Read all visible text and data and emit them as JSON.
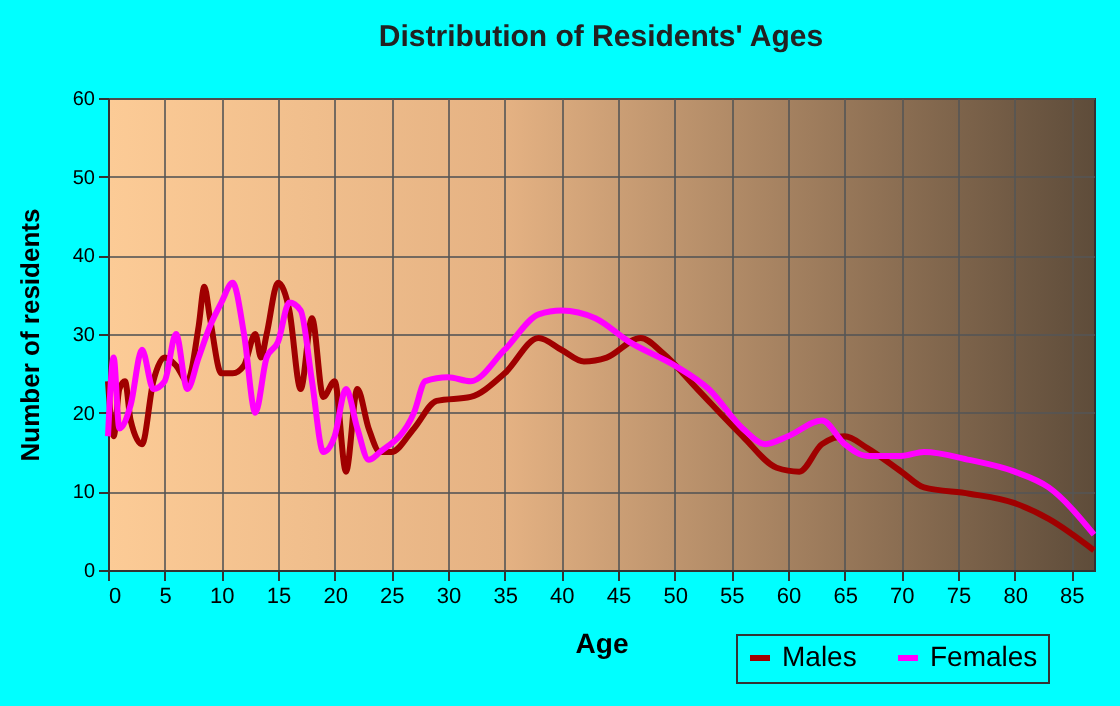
{
  "chart_data": {
    "type": "line",
    "title": "Distribution of Residents' Ages",
    "xlabel": "Age",
    "ylabel": "Number of residents",
    "xlim": [
      0,
      87
    ],
    "xticks": [
      0,
      5,
      10,
      15,
      20,
      25,
      30,
      35,
      40,
      45,
      50,
      55,
      60,
      65,
      70,
      75,
      80,
      85
    ],
    "ylim": [
      0,
      60
    ],
    "yticks": [
      0,
      10,
      20,
      30,
      40,
      50,
      60
    ],
    "grid": true,
    "legend": "bottom right",
    "series": [
      {
        "name": "Males",
        "color": "#a00000",
        "x": [
          0,
          0.5,
          1,
          1.5,
          2,
          3,
          4,
          5,
          6,
          7,
          8,
          8.5,
          9,
          10,
          11,
          12,
          13,
          13.5,
          14,
          15,
          16,
          17,
          18,
          19,
          20,
          21,
          22,
          23,
          24,
          25,
          27,
          29,
          32,
          35,
          38,
          40,
          42,
          44,
          47,
          49,
          52,
          56,
          59,
          61,
          63,
          65,
          67,
          70,
          72,
          76,
          80,
          83,
          87
        ],
        "values": [
          24,
          17,
          23,
          24,
          19,
          16,
          24,
          27,
          26,
          24,
          31,
          36,
          32,
          25,
          25,
          26,
          30,
          27,
          30,
          36.5,
          33,
          23,
          32,
          22,
          24,
          12.5,
          23,
          18,
          15,
          15,
          18,
          21.5,
          22,
          25,
          29.5,
          28,
          26.5,
          27,
          29.5,
          27.5,
          23,
          17,
          13,
          12.5,
          16,
          17,
          15.5,
          12.5,
          10.5,
          9.7,
          8.5,
          6.5,
          2.5
        ]
      },
      {
        "name": "Females",
        "color": "#ff00ff",
        "x": [
          0,
          0.5,
          1,
          2,
          3,
          4,
          5,
          6,
          7,
          8,
          9,
          10,
          11,
          12,
          13,
          14,
          15,
          16,
          17,
          18,
          19,
          20,
          21,
          22,
          23,
          24,
          27,
          28,
          30,
          32,
          35,
          38,
          40,
          43,
          46,
          50,
          53,
          56,
          58,
          60,
          63,
          65,
          67,
          70,
          72,
          76,
          80,
          83,
          87
        ],
        "values": [
          17,
          27,
          18,
          21,
          28,
          23,
          24,
          30,
          23,
          27,
          31,
          34,
          36.5,
          30,
          20,
          27,
          29,
          34,
          33,
          24,
          15,
          17,
          23,
          18,
          14,
          15,
          20,
          24,
          24.5,
          24,
          28,
          32.5,
          33,
          32,
          29,
          26,
          23,
          18,
          16,
          17,
          19,
          16,
          14.5,
          14.5,
          15,
          14,
          12.5,
          10.5,
          4.5
        ]
      }
    ]
  }
}
